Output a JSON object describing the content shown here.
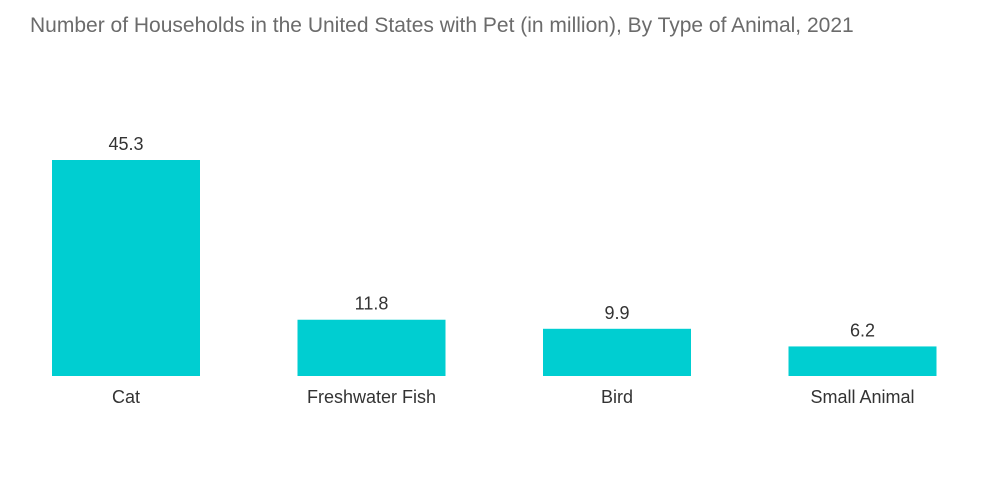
{
  "chart_data": {
    "type": "bar",
    "title": "Number of Households in the United States with Pet (in million), By Type of Animal, 2021",
    "xlabel": "",
    "ylabel": "",
    "categories": [
      "Cat",
      "Freshwater Fish",
      "Bird",
      "Small Animal"
    ],
    "values": [
      45.3,
      11.8,
      9.9,
      6.2
    ],
    "value_labels": [
      "45.3",
      "11.8",
      "9.9",
      "6.2"
    ],
    "ylim": [
      0,
      45.3
    ],
    "grid": false,
    "legend": "none",
    "bar_color": "#00CED1"
  }
}
